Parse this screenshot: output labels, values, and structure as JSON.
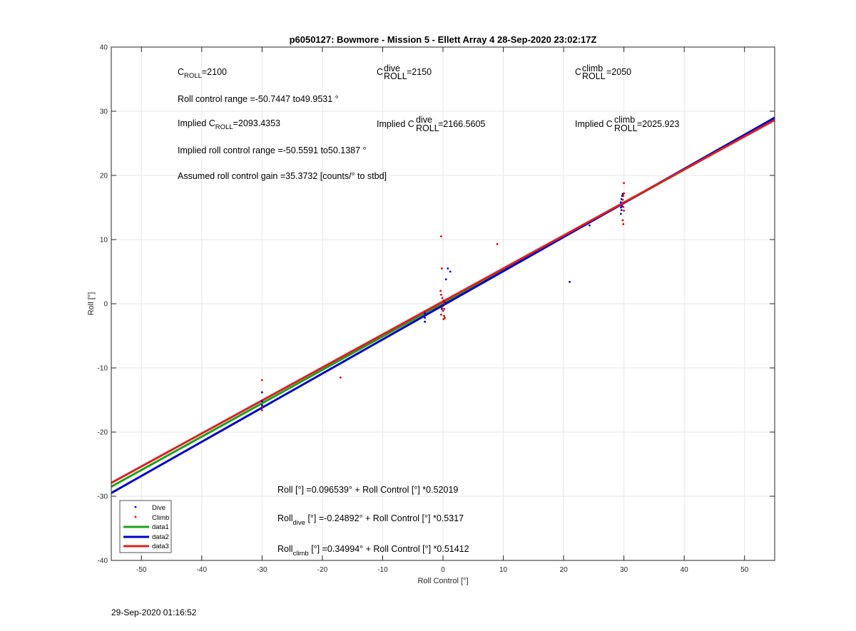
{
  "chart_data": {
    "type": "scatter",
    "title": "p6050127: Bowmore - Mission 5 - Ellett Array 4 28-Sep-2020 23:02:17Z",
    "xlabel": "Roll Control [°]",
    "ylabel": "Roll [°]",
    "xlim": [
      -55,
      55
    ],
    "ylim": [
      -40,
      40
    ],
    "xticks": [
      -50,
      -40,
      -30,
      -20,
      -10,
      0,
      10,
      20,
      30,
      40,
      50
    ],
    "yticks": [
      -40,
      -30,
      -20,
      -10,
      0,
      10,
      20,
      30,
      40
    ],
    "grid": true,
    "legend_position": "bottom-left",
    "series": [
      {
        "name": "Dive",
        "kind": "points",
        "color": "#0000cc",
        "x": [
          -30,
          -30,
          -30,
          -30,
          -3,
          -3,
          -3,
          -0.2,
          0,
          0.3,
          0.5,
          0.8,
          1.2,
          21,
          24.3,
          29.5,
          29.6,
          29.7,
          29.5,
          29.6,
          29.7,
          29.8,
          29.5
        ],
        "y": [
          -13.8,
          -15.2,
          -15.8,
          -16.2,
          -1.5,
          -2.2,
          -2.8,
          -0.8,
          -0.3,
          0.2,
          3.8,
          5.5,
          5.0,
          3.4,
          12.2,
          14.0,
          14.6,
          15.2,
          15.8,
          16.3,
          16.8,
          17.1,
          15.0
        ],
        "marker_color": "#0000cc"
      },
      {
        "name": "Climb",
        "kind": "points",
        "color": "#dd0000",
        "x": [
          -30,
          -30,
          -30,
          -17,
          -3,
          -0.3,
          -0.2,
          -0.4,
          -0.3,
          -0.1,
          0.1,
          0.2,
          -0.2,
          0.0,
          -0.3,
          0.3,
          0.1,
          0.2,
          0.2,
          9,
          29.8,
          29.9,
          30.0,
          29.9,
          30.0,
          29.8,
          29.9,
          30.0,
          30.0
        ],
        "y": [
          -11.9,
          -16.1,
          -16.6,
          -11.5,
          -1.2,
          10.5,
          5.5,
          2.0,
          1.4,
          0.9,
          0.5,
          0.0,
          -0.6,
          -1.1,
          -1.7,
          -2.2,
          -2.4,
          -1.9,
          -0.8,
          9.3,
          13.0,
          12.4,
          14.5,
          15.1,
          15.7,
          16.2,
          16.8,
          17.2,
          18.8
        ],
        "marker_color": "#dd0000"
      },
      {
        "name": "data1",
        "kind": "line",
        "color": "#1aa31a",
        "intercept": 0.096539,
        "slope": 0.52019
      },
      {
        "name": "data2",
        "kind": "line",
        "color": "#0000cc",
        "intercept": -0.24892,
        "slope": 0.5317
      },
      {
        "name": "data3",
        "kind": "line",
        "color": "#dd2020",
        "intercept": 0.34994,
        "slope": 0.51412
      }
    ],
    "annotations": {
      "c_roll": {
        "base": "C",
        "sub": "ROLL",
        "value": "=2100"
      },
      "c_roll_dive": {
        "base": "C",
        "sub": "ROLL",
        "sup": "dive",
        "value": "=2150"
      },
      "c_roll_climb": {
        "base": "C",
        "sub": "ROLL",
        "sup": "climb",
        "value": "=2050"
      },
      "roll_control_range": "Roll control range =-50.7447 to49.9531 °",
      "implied_c_roll": {
        "prefix": "Implied C",
        "sub": "ROLL",
        "value": "=2093.4353"
      },
      "implied_c_roll_dive": {
        "prefix": "Implied C",
        "sub": "ROLL",
        "sup": "dive",
        "value": "=2166.5605"
      },
      "implied_c_roll_climb": {
        "prefix": "Implied C",
        "sub": "ROLL",
        "sup": "climb",
        "value": "=2025.923"
      },
      "implied_range": "Implied roll control range =-50.5591 to50.1387 °",
      "gain": "Assumed roll control gain =35.3732 [counts/° to stbd]",
      "fit_all": "Roll [°] =0.096539° + Roll Control [°] *0.52019",
      "fit_dive": {
        "base": "Roll",
        "sub": "dive",
        "rest": " [°] =-0.24892° + Roll Control [°] *0.5317"
      },
      "fit_climb": {
        "base": "Roll",
        "sub": "climb",
        "rest": " [°] =0.34994° + Roll Control [°] *0.51412"
      }
    }
  },
  "timestamp": "29-Sep-2020 01:16:52"
}
